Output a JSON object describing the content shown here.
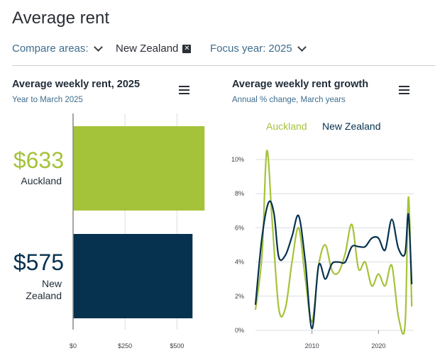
{
  "page": {
    "title": "Average rent"
  },
  "filters": {
    "compare_label": "Compare areas:",
    "selected_area": "New Zealand",
    "remove_icon": "close-icon",
    "focus_label": "Focus year:",
    "focus_value": "2025"
  },
  "colors": {
    "auckland": "#a5c33a",
    "new_zealand": "#06314f",
    "accent_text": "#3f6d8e",
    "grid": "#d9dde1"
  },
  "left_panel": {
    "title": "Average weekly rent, 2025",
    "subtitle": "Year to March 2025",
    "menu_icon": "hamburger-menu-icon",
    "bars": [
      {
        "value_label": "$633",
        "area_lines": [
          "Auckland"
        ]
      },
      {
        "value_label": "$575",
        "area_lines": [
          "New",
          "Zealand"
        ]
      }
    ]
  },
  "right_panel": {
    "title": "Average weekly rent growth",
    "subtitle": "Annual % change, March years",
    "menu_icon": "hamburger-menu-icon",
    "legend": [
      "Auckland",
      "New Zealand"
    ]
  },
  "chart_data": [
    {
      "type": "bar",
      "orientation": "horizontal",
      "categories": [
        "Auckland",
        "New Zealand"
      ],
      "values": [
        633,
        575
      ],
      "xlim": [
        0,
        615
      ],
      "x_ticks": [
        0,
        250,
        500
      ],
      "x_tick_labels": [
        "$0",
        "$250",
        "$500"
      ],
      "grid": true
    },
    {
      "type": "line",
      "xlim": [
        2001.5,
        2025.3
      ],
      "ylim": [
        0,
        10
      ],
      "x_ticks": [
        2010,
        2020
      ],
      "y_ticks": [
        0,
        2,
        4,
        6,
        8,
        10
      ],
      "y_tick_labels": [
        "0%",
        "2%",
        "4%",
        "6%",
        "8%",
        "10%"
      ],
      "grid": true,
      "legend_position": "top",
      "series": [
        {
          "name": "Auckland",
          "x": [
            2001.5,
            2002.5,
            2003.2,
            2004,
            2005,
            2006,
            2007,
            2008,
            2009,
            2010,
            2011,
            2012,
            2013,
            2014,
            2015,
            2016,
            2017,
            2018,
            2019,
            2020,
            2021,
            2022,
            2023,
            2024,
            2024.5,
            2025
          ],
          "y": [
            1.2,
            4.5,
            10.5,
            6.5,
            1.3,
            1.3,
            4.0,
            6.0,
            3.0,
            0.5,
            3.8,
            5.0,
            3.5,
            3.4,
            4.5,
            6.2,
            3.6,
            4.0,
            2.6,
            3.3,
            2.6,
            3.8,
            0.8,
            0.3,
            7.8,
            1.4
          ]
        },
        {
          "name": "New Zealand",
          "x": [
            2001.5,
            2002.5,
            2003.5,
            2004.3,
            2005,
            2006,
            2007,
            2008,
            2009,
            2010,
            2011,
            2012,
            2013,
            2014,
            2015,
            2016,
            2017,
            2018,
            2019,
            2020,
            2021,
            2022,
            2023,
            2024,
            2024.5,
            2025
          ],
          "y": [
            1.5,
            5.5,
            7.5,
            6.8,
            4.3,
            4.4,
            5.5,
            6.7,
            4.0,
            0.1,
            3.8,
            3.0,
            3.9,
            4.0,
            4.0,
            4.9,
            4.9,
            4.9,
            5.4,
            5.4,
            4.7,
            6.5,
            4.8,
            4.5,
            6.8,
            2.7
          ]
        }
      ]
    }
  ]
}
